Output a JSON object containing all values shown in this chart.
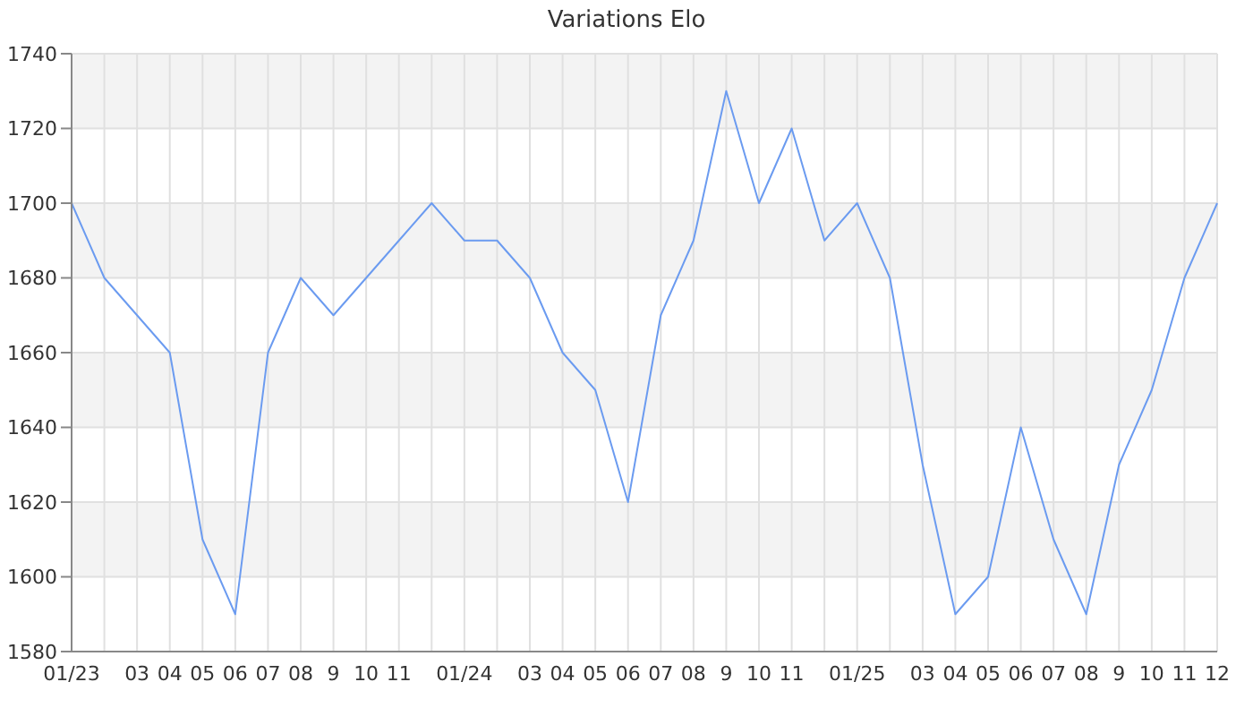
{
  "chart_data": {
    "type": "line",
    "title": "Variations Elo",
    "categories": [
      "01/23",
      null,
      "03",
      "04",
      "05",
      "06",
      "07",
      "08",
      "9",
      "10",
      "11",
      null,
      "01/24",
      null,
      "03",
      "04",
      "05",
      "06",
      "07",
      "08",
      "9",
      "10",
      "11",
      null,
      "01/25",
      null,
      "03",
      "04",
      "05",
      "06",
      "07",
      "08",
      "9",
      "10",
      "11",
      "12"
    ],
    "series": [
      {
        "color": "#6b9bf0",
        "values": [
          1700,
          1680,
          1670,
          1660,
          1610,
          1590,
          1660,
          1680,
          1670,
          1680,
          1690,
          1700,
          1690,
          1690,
          1680,
          1660,
          1650,
          1620,
          1670,
          1690,
          1730,
          1700,
          1720,
          1690,
          1700,
          1680,
          1630,
          1590,
          1600,
          1640,
          1610,
          1590,
          1630,
          1650,
          1680,
          1700
        ]
      }
    ],
    "ylim": [
      1580,
      1740
    ],
    "yticks": [
      1580,
      1600,
      1620,
      1640,
      1660,
      1680,
      1700,
      1720,
      1740
    ],
    "grid": true,
    "marker": "none",
    "line_style": "solid"
  }
}
